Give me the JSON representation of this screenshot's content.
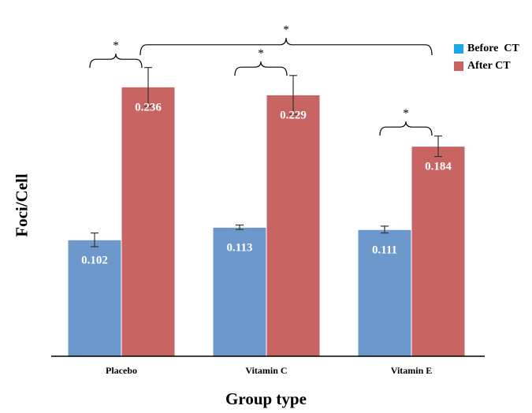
{
  "colors": {
    "before": "#6d98cc",
    "after": "#c86462",
    "legend_before": "#1fa6e6",
    "legend_after": "#c86462",
    "axis": "#000000",
    "bracket": "#000000"
  },
  "chart_data": {
    "type": "bar",
    "categories": [
      "Placebo",
      "Vitamin C",
      "Vitamin E"
    ],
    "series": [
      {
        "name": "Before  CT",
        "values": [
          0.102,
          0.113,
          0.111
        ],
        "errors": [
          0.006,
          0.002,
          0.003
        ],
        "labels": [
          "0.102",
          "0.113",
          "0.111"
        ]
      },
      {
        "name": "After CT",
        "values": [
          0.236,
          0.229,
          0.184
        ],
        "errors": [
          0.017,
          0.017,
          0.009
        ],
        "labels": [
          "0.236",
          "0.229",
          "0.184"
        ]
      }
    ],
    "xlabel": "Group type",
    "ylabel": "Foci/Cell",
    "ylim": [
      0,
      0.27
    ],
    "grid": false,
    "legend_position": "top-right",
    "annotations": {
      "significance_symbol": "*",
      "brackets": [
        {
          "between": "Placebo before vs after",
          "label": "*"
        },
        {
          "between": "Vitamin C before vs after",
          "label": "*"
        },
        {
          "between": "Vitamin E before vs after",
          "label": "*"
        },
        {
          "between": "Placebo after vs Vitamin E before",
          "label": "*"
        }
      ]
    }
  }
}
